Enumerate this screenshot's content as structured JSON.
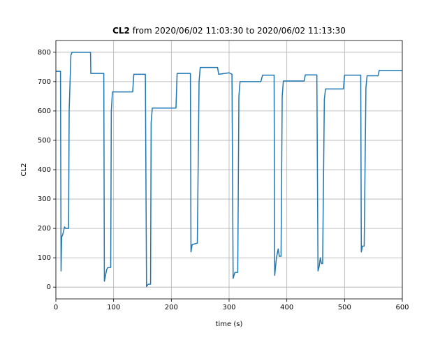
{
  "chart_data": {
    "type": "line",
    "title_bold": "CL2",
    "title": "from 2020/06/02 11:03:30 to 2020/06/02 11:13:30",
    "xlabel": "time (s)",
    "ylabel": "CL2",
    "xlim": [
      0,
      600
    ],
    "xticks": [
      0,
      100,
      200,
      300,
      400,
      500,
      600
    ],
    "ylim": [
      -40,
      840
    ],
    "yticks": [
      0,
      100,
      200,
      300,
      400,
      500,
      600,
      700,
      800
    ],
    "grid": true,
    "series": [
      {
        "name": "CL2",
        "color": "#1f77b4",
        "x": [
          0,
          8,
          9,
          10,
          12,
          15,
          17,
          22,
          23,
          26,
          28,
          60,
          60.5,
          83,
          84,
          88,
          90,
          95,
          96,
          98,
          133,
          135,
          155,
          157,
          160,
          164,
          165,
          167,
          208,
          210,
          233,
          234,
          236,
          245,
          248,
          250,
          280,
          282,
          300,
          305,
          307,
          310,
          315,
          317,
          319,
          355,
          358,
          378,
          379,
          382,
          385,
          387,
          390,
          392,
          394,
          430,
          432,
          452,
          454,
          456,
          458,
          460,
          462,
          465,
          467,
          498,
          500,
          528,
          529,
          531,
          534,
          537,
          539,
          558,
          560,
          600
        ],
        "values": [
          735,
          735,
          55,
          170,
          180,
          205,
          200,
          200,
          600,
          790,
          800,
          800,
          728,
          728,
          20,
          60,
          67,
          67,
          600,
          665,
          665,
          725,
          725,
          2,
          10,
          10,
          560,
          610,
          610,
          728,
          728,
          120,
          145,
          150,
          700,
          748,
          748,
          725,
          730,
          725,
          30,
          50,
          50,
          650,
          700,
          700,
          722,
          722,
          40,
          100,
          130,
          105,
          105,
          650,
          702,
          702,
          723,
          723,
          55,
          70,
          100,
          80,
          80,
          640,
          675,
          675,
          722,
          722,
          120,
          140,
          140,
          680,
          720,
          720,
          738,
          738
        ]
      }
    ]
  }
}
